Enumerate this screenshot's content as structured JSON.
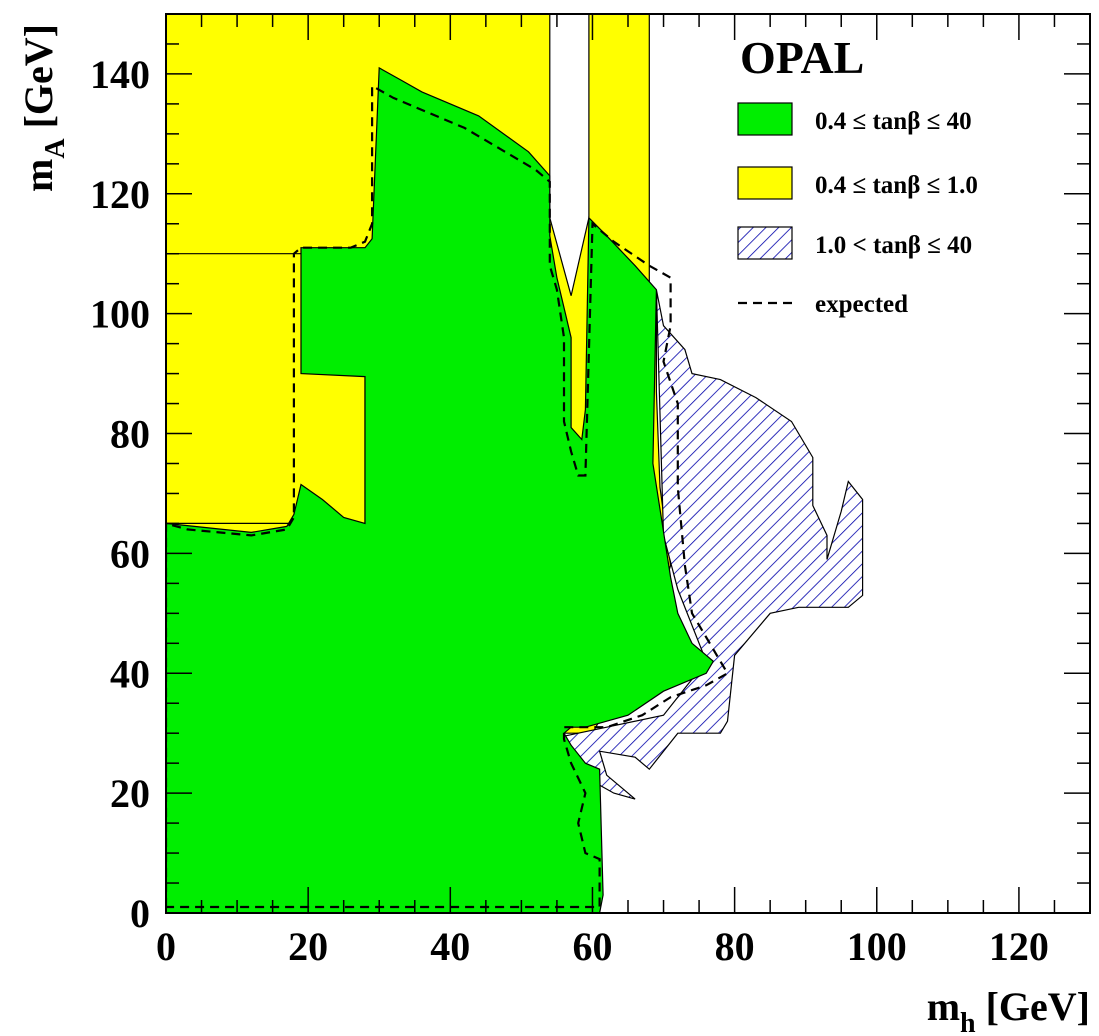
{
  "chart_data": {
    "type": "area",
    "experiment": "OPAL",
    "xlabel": "m",
    "xlabel_sub": "h",
    "xlabel_unit": " [GeV]",
    "ylabel": "m",
    "ylabel_sub": "A",
    "ylabel_unit": " [GeV]",
    "xlim": [
      0,
      130
    ],
    "ylim": [
      0,
      150
    ],
    "x_ticks": [
      "0",
      "20",
      "40",
      "60",
      "80",
      "100",
      "120"
    ],
    "y_ticks": [
      "0",
      "20",
      "40",
      "60",
      "80",
      "100",
      "120",
      "140"
    ],
    "legend": [
      {
        "label": "0.4 ≤ tanβ ≤  40",
        "style": "fill",
        "color": "#00ee00"
      },
      {
        "label": "0.4 ≤ tanβ ≤  1.0",
        "style": "fill",
        "color": "#ffff00"
      },
      {
        "label": "1.0 < tanβ ≤  40",
        "style": "hatch",
        "color": "#0000aa"
      },
      {
        "label": "expected",
        "style": "dash",
        "color": "#000000"
      }
    ],
    "legend_position": "top-right",
    "series": [
      {
        "name": "0.4 ≤ tanβ ≤  1.0",
        "color": "#ffff00",
        "polygons": [
          [
            [
              0,
              150
            ],
            [
              54,
              150
            ],
            [
              54,
              116
            ],
            [
              57,
              103
            ],
            [
              59.5,
              116
            ],
            [
              59.5,
              150
            ],
            [
              68,
              150
            ],
            [
              68,
              104
            ],
            [
              69,
              102
            ],
            [
              69,
              87
            ],
            [
              69.5,
              71
            ],
            [
              71,
              58
            ],
            [
              68,
              47
            ],
            [
              60,
              30
            ],
            [
              0,
              30
            ]
          ],
          [
            [
              0,
              65
            ],
            [
              28,
              65
            ],
            [
              28,
              110
            ],
            [
              0,
              110
            ]
          ]
        ]
      },
      {
        "name": "1.0 < tanβ ≤  40",
        "color": "#0000aa",
        "polygons": [
          [
            [
              54,
              29
            ],
            [
              58,
              30
            ],
            [
              62,
              31
            ],
            [
              70,
              33
            ],
            [
              76,
              42
            ],
            [
              72,
              54
            ],
            [
              70,
              63
            ],
            [
              69,
              104
            ],
            [
              70,
              98
            ],
            [
              73,
              94
            ],
            [
              74,
              90
            ],
            [
              78,
              89
            ],
            [
              83,
              86
            ],
            [
              88,
              82
            ],
            [
              91,
              76
            ],
            [
              91,
              68
            ],
            [
              93,
              63
            ],
            [
              93,
              59
            ],
            [
              95,
              67
            ],
            [
              96,
              72
            ],
            [
              98,
              69
            ],
            [
              98,
              53
            ],
            [
              96,
              51
            ],
            [
              89,
              51
            ],
            [
              85,
              50
            ],
            [
              80,
              43
            ],
            [
              79,
              32
            ],
            [
              78,
              30
            ],
            [
              72,
              30
            ],
            [
              68,
              24
            ],
            [
              66,
              26
            ],
            [
              61,
              27
            ],
            [
              62,
              23
            ],
            [
              66,
              19
            ],
            [
              63,
              20
            ],
            [
              60,
              22
            ]
          ]
        ]
      },
      {
        "name": "0.4 ≤ tanβ ≤  40",
        "color": "#00ee00",
        "polygons": [
          [
            [
              0,
              0
            ],
            [
              0,
              65
            ],
            [
              4,
              64.5
            ],
            [
              12,
              63.5
            ],
            [
              17,
              64.5
            ],
            [
              18,
              66.5
            ],
            [
              19,
              71.5
            ],
            [
              22,
              69
            ],
            [
              25,
              66
            ],
            [
              28,
              65
            ],
            [
              28,
              89.5
            ],
            [
              19,
              90
            ],
            [
              19,
              111
            ],
            [
              28,
              111
            ],
            [
              29,
              112.5
            ],
            [
              30,
              141
            ],
            [
              33,
              139
            ],
            [
              36,
              137
            ],
            [
              44,
              133
            ],
            [
              51,
              127
            ],
            [
              54,
              123
            ],
            [
              54,
              113
            ],
            [
              55,
              106
            ],
            [
              57,
              96
            ],
            [
              57,
              81
            ],
            [
              58.5,
              79
            ],
            [
              59,
              84
            ],
            [
              59.5,
              116
            ],
            [
              62,
              113
            ],
            [
              66,
              108
            ],
            [
              69,
              104
            ],
            [
              68.5,
              75
            ],
            [
              71,
              56
            ],
            [
              72,
              50
            ],
            [
              74,
              45
            ],
            [
              77,
              42
            ],
            [
              76,
              40
            ],
            [
              70,
              37
            ],
            [
              65,
              33
            ],
            [
              59,
              31
            ],
            [
              57,
              31
            ],
            [
              56,
              30
            ],
            [
              57,
              28
            ],
            [
              59,
              25
            ],
            [
              61,
              24
            ],
            [
              61.5,
              3
            ],
            [
              61,
              0
            ]
          ]
        ]
      },
      {
        "name": "expected",
        "style": "dash",
        "color": "#000000",
        "points": [
          [
            0,
            1
          ],
          [
            0,
            65
          ],
          [
            3,
            64
          ],
          [
            12,
            63
          ],
          [
            17,
            64
          ],
          [
            18,
            66
          ],
          [
            18,
            110
          ],
          [
            19,
            111
          ],
          [
            26,
            111
          ],
          [
            28,
            112
          ],
          [
            29,
            115
          ],
          [
            29,
            138
          ],
          [
            32,
            136
          ],
          [
            42,
            131
          ],
          [
            52,
            124
          ],
          [
            54,
            122
          ],
          [
            54,
            108
          ],
          [
            55,
            104
          ],
          [
            56,
            96
          ],
          [
            56,
            82
          ],
          [
            57,
            77
          ],
          [
            58,
            73
          ],
          [
            59,
            73
          ],
          [
            60,
            115
          ],
          [
            63,
            112
          ],
          [
            68,
            108
          ],
          [
            71,
            106
          ],
          [
            71,
            98
          ],
          [
            70,
            92
          ],
          [
            72,
            85
          ],
          [
            72,
            71
          ],
          [
            73,
            58
          ],
          [
            74,
            50
          ],
          [
            77,
            44
          ],
          [
            79,
            40
          ],
          [
            76,
            38
          ],
          [
            71,
            36
          ],
          [
            67,
            33
          ],
          [
            62,
            31
          ],
          [
            59,
            31
          ],
          [
            56,
            31
          ],
          [
            56,
            29
          ],
          [
            57,
            25
          ],
          [
            59,
            20
          ],
          [
            58,
            15
          ],
          [
            59,
            10
          ],
          [
            61,
            9
          ],
          [
            61,
            2
          ],
          [
            61,
            1
          ],
          [
            0,
            1
          ]
        ]
      }
    ]
  }
}
